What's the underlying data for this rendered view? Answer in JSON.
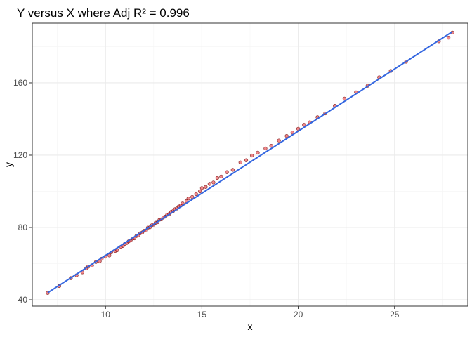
{
  "chart_data": {
    "type": "scatter",
    "title": "Y versus X where Adj R² = 0.996",
    "xlabel": "x",
    "ylabel": "y",
    "xlim": [
      6.2,
      28.8
    ],
    "ylim": [
      36.5,
      193
    ],
    "x_ticks": [
      10,
      15,
      20,
      25
    ],
    "y_ticks": [
      40,
      80,
      120,
      160
    ],
    "grid": true,
    "legend": "none",
    "colors": {
      "points_fill": "#e8494f",
      "points_stroke": "#6b0000",
      "fit_line": "#3366e0",
      "grid_major": "#ebebeb",
      "grid_minor": "#f4f4f4",
      "panel_border": "#333333"
    },
    "series": [
      {
        "kind": "points",
        "points": [
          [
            7.0,
            43.8
          ],
          [
            7.6,
            47.6
          ],
          [
            8.2,
            52.0
          ],
          [
            8.5,
            53.6
          ],
          [
            8.8,
            55.2
          ],
          [
            9.0,
            57.4
          ],
          [
            9.1,
            58.3
          ],
          [
            9.3,
            59.0
          ],
          [
            9.5,
            60.9
          ],
          [
            9.7,
            61.3
          ],
          [
            9.8,
            62.7
          ],
          [
            10.0,
            63.9
          ],
          [
            10.2,
            64.5
          ],
          [
            10.3,
            66.2
          ],
          [
            10.5,
            67.0
          ],
          [
            10.6,
            67.4
          ],
          [
            10.8,
            69.3
          ],
          [
            10.9,
            69.8
          ],
          [
            11.0,
            70.9
          ],
          [
            11.1,
            71.4
          ],
          [
            11.2,
            72.3
          ],
          [
            11.3,
            72.8
          ],
          [
            11.4,
            73.9
          ],
          [
            11.5,
            74.0
          ],
          [
            11.6,
            75.3
          ],
          [
            11.7,
            75.6
          ],
          [
            11.8,
            76.8
          ],
          [
            11.9,
            77.2
          ],
          [
            12.0,
            78.2
          ],
          [
            12.1,
            78.3
          ],
          [
            12.2,
            79.9
          ],
          [
            12.3,
            80.1
          ],
          [
            12.4,
            81.2
          ],
          [
            12.5,
            81.6
          ],
          [
            12.6,
            82.6
          ],
          [
            12.7,
            82.9
          ],
          [
            12.8,
            84.3
          ],
          [
            12.9,
            84.5
          ],
          [
            13.0,
            85.6
          ],
          [
            13.1,
            86.0
          ],
          [
            13.2,
            87.1
          ],
          [
            13.3,
            87.4
          ],
          [
            13.4,
            88.6
          ],
          [
            13.5,
            89.0
          ],
          [
            13.6,
            90.1
          ],
          [
            13.7,
            90.5
          ],
          [
            13.8,
            91.6
          ],
          [
            13.9,
            92.1
          ],
          [
            14.0,
            93.3
          ],
          [
            14.2,
            94.6
          ],
          [
            14.3,
            96.0
          ],
          [
            14.5,
            96.9
          ],
          [
            14.7,
            98.5
          ],
          [
            14.9,
            100.0
          ],
          [
            15.0,
            101.8
          ],
          [
            15.2,
            102.4
          ],
          [
            15.4,
            104.1
          ],
          [
            15.6,
            104.9
          ],
          [
            15.8,
            107.4
          ],
          [
            16.0,
            108.2
          ],
          [
            16.3,
            110.6
          ],
          [
            16.6,
            111.9
          ],
          [
            17.0,
            116.0
          ],
          [
            17.3,
            117.2
          ],
          [
            17.6,
            119.8
          ],
          [
            17.9,
            121.4
          ],
          [
            18.3,
            123.7
          ],
          [
            18.6,
            125.2
          ],
          [
            19.0,
            128.1
          ],
          [
            19.4,
            130.6
          ],
          [
            19.7,
            132.5
          ],
          [
            20.0,
            134.6
          ],
          [
            20.3,
            136.8
          ],
          [
            20.6,
            138.2
          ],
          [
            21.0,
            141.0
          ],
          [
            21.4,
            143.1
          ],
          [
            21.9,
            147.3
          ],
          [
            22.4,
            151.3
          ],
          [
            23.0,
            154.8
          ],
          [
            23.6,
            158.4
          ],
          [
            24.2,
            163.1
          ],
          [
            24.8,
            166.6
          ],
          [
            25.6,
            171.7
          ],
          [
            27.3,
            183.0
          ],
          [
            27.8,
            185.0
          ],
          [
            28.0,
            187.8
          ]
        ]
      },
      {
        "kind": "fitted-line",
        "x": [
          7.0,
          28.0
        ],
        "y": [
          43.9,
          188.3
        ]
      }
    ]
  }
}
